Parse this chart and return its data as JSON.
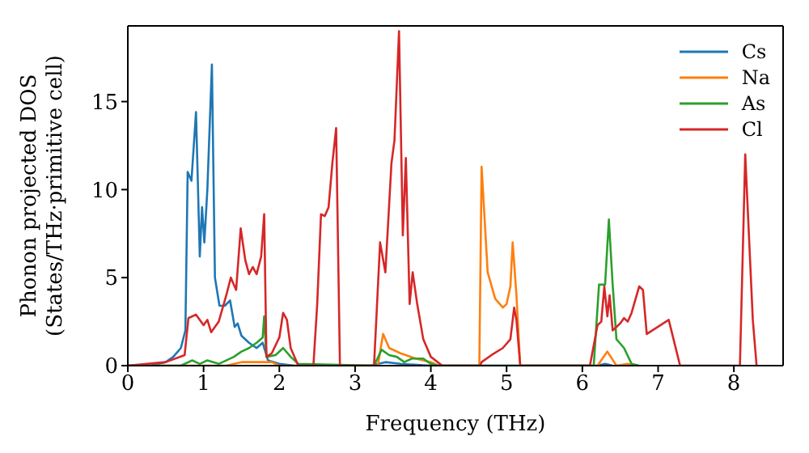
{
  "chart_data": {
    "type": "line",
    "xlabel": "Frequency (THz)",
    "ylabel": "Phonon projected DOS\n(States/THz·primitive cell)",
    "xlim": [
      0,
      8.65
    ],
    "ylim": [
      0,
      19.3
    ],
    "xticks": [
      0,
      1,
      2,
      3,
      4,
      5,
      6,
      7,
      8
    ],
    "yticks": [
      0,
      5,
      10,
      15
    ],
    "grid": false,
    "legend": "top right",
    "marker": "none",
    "line_style": "solid",
    "series": [
      {
        "name": "Cs",
        "color": "#1f77b4",
        "x": [
          0,
          0.3,
          0.5,
          0.6,
          0.7,
          0.76,
          0.79,
          0.84,
          0.9,
          0.95,
          0.98,
          1.01,
          1.05,
          1.11,
          1.15,
          1.21,
          1.28,
          1.35,
          1.41,
          1.45,
          1.5,
          1.6,
          1.7,
          1.78,
          1.85,
          2.0,
          2.2,
          3.2,
          3.4,
          3.6,
          4.0,
          6.2,
          6.3,
          6.4
        ],
        "values": [
          0,
          0,
          0.2,
          0.5,
          1.0,
          2.0,
          11.0,
          10.5,
          14.4,
          6.2,
          9.0,
          7.0,
          10.0,
          17.1,
          5.0,
          3.4,
          3.4,
          3.7,
          2.2,
          2.4,
          1.7,
          1.3,
          1.0,
          1.3,
          0.3,
          0.1,
          0,
          0,
          0.2,
          0.1,
          0,
          0,
          0.1,
          0
        ]
      },
      {
        "name": "Na",
        "color": "#ff7f0e",
        "x": [
          0,
          1.3,
          1.5,
          1.9,
          2.0,
          3.3,
          3.37,
          3.45,
          3.6,
          3.8,
          4.0,
          4.1,
          4.64,
          4.67,
          4.75,
          4.85,
          4.95,
          5.0,
          5.05,
          5.08,
          5.13,
          5.18,
          6.2,
          6.33,
          6.45,
          6.6,
          6.7
        ],
        "values": [
          0,
          0,
          0.2,
          0.2,
          0,
          0,
          1.8,
          1.0,
          0.7,
          0.4,
          0.2,
          0,
          0,
          11.3,
          5.3,
          3.8,
          3.3,
          3.5,
          4.5,
          7.0,
          4.0,
          0,
          0,
          0.8,
          0,
          0.1,
          0
        ]
      },
      {
        "name": "As",
        "color": "#2ca02c",
        "x": [
          0,
          0.7,
          0.85,
          0.95,
          1.05,
          1.2,
          1.4,
          1.5,
          1.6,
          1.7,
          1.78,
          1.8,
          1.83,
          1.95,
          2.05,
          2.15,
          2.25,
          3.25,
          3.35,
          3.45,
          3.55,
          3.65,
          3.75,
          3.9,
          4.0,
          4.1,
          6.15,
          6.22,
          6.3,
          6.35,
          6.4,
          6.45,
          6.55,
          6.65,
          6.75
        ],
        "values": [
          0,
          0,
          0.3,
          0.1,
          0.3,
          0.1,
          0.5,
          0.8,
          1.0,
          1.3,
          1.6,
          2.8,
          0.5,
          0.6,
          1.0,
          0.5,
          0.1,
          0,
          0.9,
          0.6,
          0.5,
          0.2,
          0.4,
          0.4,
          0.1,
          0,
          0,
          4.6,
          4.6,
          8.3,
          4.6,
          1.5,
          1.0,
          0.1,
          0
        ]
      },
      {
        "name": "Cl",
        "color": "#d62728",
        "x": [
          0,
          0.5,
          0.75,
          0.8,
          0.9,
          1.0,
          1.05,
          1.1,
          1.2,
          1.3,
          1.36,
          1.43,
          1.49,
          1.55,
          1.6,
          1.65,
          1.7,
          1.76,
          1.8,
          1.83,
          1.9,
          2.0,
          2.05,
          2.1,
          2.15,
          2.25,
          2.45,
          2.5,
          2.55,
          2.6,
          2.65,
          2.7,
          2.75,
          2.8,
          3.25,
          3.33,
          3.4,
          3.48,
          3.52,
          3.58,
          3.63,
          3.67,
          3.72,
          3.76,
          3.82,
          3.9,
          3.95,
          4.0,
          4.15,
          4.65,
          4.67,
          4.8,
          4.95,
          5.05,
          5.1,
          5.13,
          5.18,
          6.1,
          6.2,
          6.25,
          6.29,
          6.33,
          6.36,
          6.4,
          6.5,
          6.55,
          6.6,
          6.65,
          6.75,
          6.8,
          6.85,
          7.14,
          7.29,
          8.08,
          8.15,
          8.25,
          8.3
        ],
        "values": [
          0,
          0.2,
          0.6,
          2.7,
          2.9,
          2.3,
          2.6,
          1.9,
          2.5,
          4.0,
          5.0,
          4.3,
          7.8,
          6.0,
          5.2,
          5.6,
          5.2,
          6.2,
          8.6,
          0.5,
          0.7,
          1.6,
          3.0,
          2.6,
          1.0,
          0,
          0,
          3.5,
          8.6,
          8.5,
          9.0,
          11.5,
          13.5,
          0,
          0,
          7.0,
          5.3,
          11.5,
          12.8,
          19.0,
          7.4,
          11.8,
          3.5,
          5.3,
          3.5,
          1.5,
          1.0,
          0.5,
          0,
          0,
          0.2,
          0.6,
          1.0,
          1.5,
          3.3,
          2.6,
          0,
          0,
          2.3,
          2.5,
          4.5,
          2.8,
          4.0,
          2.0,
          2.4,
          2.7,
          2.5,
          3.0,
          4.5,
          4.3,
          1.8,
          2.6,
          0,
          0,
          12.0,
          2.6,
          0
        ]
      }
    ]
  }
}
